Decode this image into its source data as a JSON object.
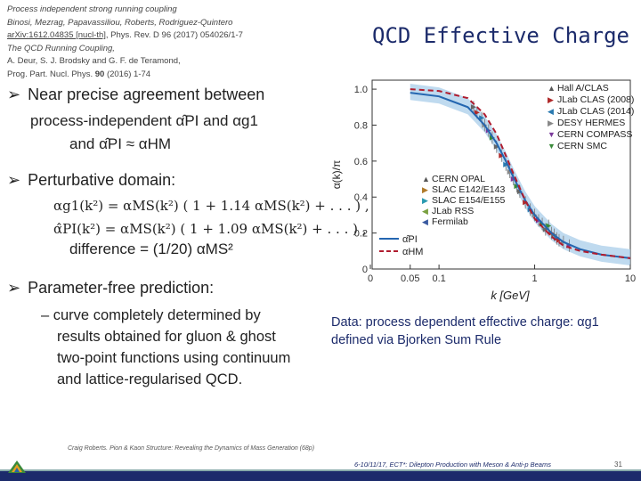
{
  "references": {
    "line1": "Process independent strong running coupling",
    "line2": "Binosi, Mezrag, Papavassiliou, Roberts, Rodriguez-Quintero",
    "line3_link": "arXiv:1612.04835 [nucl-th]",
    "line3_rest": ", Phys. Rev. D 96 (2017) 054026/1-7",
    "line4": "The QCD Running Coupling,",
    "line5": "A. Deur, S. J. Brodsky and G. F. de Teramond,",
    "line6_a": "Prog. Part. Nucl. Phys. ",
    "line6_b": "90",
    "line6_c": " (2016) 1-74"
  },
  "slide_title": "QCD Effective Charge",
  "bullets": {
    "b1_line1": "Near precise agreement between",
    "b1_line2": "process-independent α̂PI and αg1",
    "b1_line3": "and α̂PI ≈ αHM",
    "b2": "Perturbative domain:",
    "eq1": "αg1(k²) = αMS(k²) ( 1 + 1.14 αMS(k²) + . . . ) ,",
    "eq2": "α̂PI(k²) = αMS(k²) ( 1 + 1.09 αMS(k²) + . . . ) ,",
    "difference": "difference = (1/20) αMS²",
    "b3": "Parameter-free prediction:",
    "b3_sub1": "– curve completely determined by",
    "b3_sub2": "results obtained for gluon & ghost",
    "b3_sub3": "two-point functions using continuum",
    "b3_sub4": "and lattice-regularised QCD."
  },
  "data_note": {
    "line1": "Data: process dependent effective charge: αg1",
    "line2": "defined via Bjorken Sum Rule"
  },
  "footer": {
    "left": "Craig Roberts. Pion & Kaon Structure: Revealing the Dynamics of Mass Generation (68p)",
    "right": "6-10/11/17, ECT*: Dilepton Production with Meson & Anti-p Beams",
    "page": "31"
  },
  "chart_data": {
    "type": "scatter",
    "xlabel": "k [GeV]",
    "ylabel": "α(k)/π",
    "xscale": "log",
    "xlim": [
      0,
      10
    ],
    "ylim": [
      0,
      1.05
    ],
    "xticks": [
      "0",
      "0.05",
      "0.1",
      "1",
      "10"
    ],
    "yticks": [
      "0",
      "0.2",
      "0.4",
      "0.6",
      "0.8",
      "1.0"
    ],
    "legend_top": [
      "Hall A/CLAS",
      "JLab CLAS (2008)",
      "JLab CLAS (2014)",
      "DESY HERMES",
      "CERN COMPASS",
      "CERN SMC"
    ],
    "legend_bottom": [
      "CERN OPAL",
      "SLAC E142/E143",
      "SLAC E154/E155",
      "JLab RSS",
      "Fermilab"
    ],
    "curve_labels": [
      "α̂PI",
      "αHM"
    ],
    "series": [
      {
        "name": "α̂PI",
        "x": [
          0.05,
          0.1,
          0.2,
          0.3,
          0.4,
          0.5,
          0.6,
          0.7,
          0.8,
          1.0,
          1.5,
          2,
          3,
          5,
          10
        ],
        "y": [
          0.98,
          0.96,
          0.9,
          0.8,
          0.7,
          0.6,
          0.51,
          0.44,
          0.38,
          0.3,
          0.2,
          0.15,
          0.11,
          0.08,
          0.06
        ]
      },
      {
        "name": "αHM",
        "x": [
          0.05,
          0.1,
          0.2,
          0.3,
          0.4,
          0.5,
          0.6,
          0.7,
          0.8,
          1.0,
          1.5,
          2,
          3,
          5,
          10
        ],
        "y": [
          1.0,
          0.99,
          0.95,
          0.86,
          0.75,
          0.63,
          0.53,
          0.45,
          0.38,
          0.28,
          0.18,
          0.13,
          0.1,
          0.08,
          0.06
        ]
      }
    ],
    "points": {
      "x": [
        0.23,
        0.25,
        0.28,
        0.3,
        0.33,
        0.36,
        0.4,
        0.45,
        0.5,
        0.55,
        0.6,
        0.65,
        0.7,
        0.8,
        0.9,
        1.0,
        1.1,
        1.2,
        1.3,
        1.5,
        1.7,
        2.0,
        2.3,
        1.4,
        1.6,
        1.8
      ],
      "y": [
        0.9,
        0.87,
        0.84,
        0.8,
        0.77,
        0.73,
        0.68,
        0.63,
        0.58,
        0.54,
        0.5,
        0.46,
        0.43,
        0.37,
        0.33,
        0.3,
        0.27,
        0.25,
        0.22,
        0.2,
        0.17,
        0.15,
        0.13,
        0.24,
        0.19,
        0.16
      ]
    }
  },
  "colors": {
    "title": "#1c2b6b",
    "band": "#a9cdea",
    "solid": "#2466b0",
    "dashed": "#b01c2e"
  }
}
